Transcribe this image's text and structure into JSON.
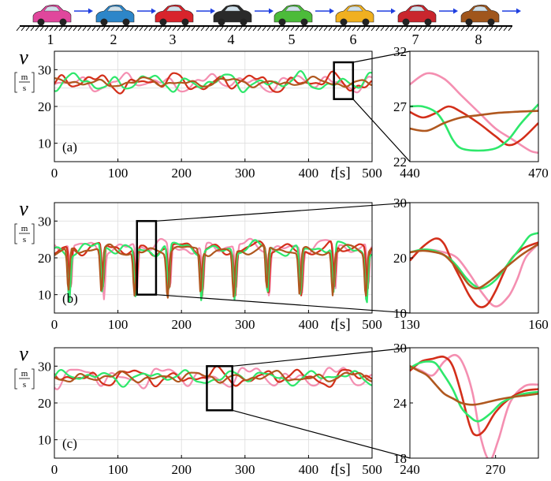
{
  "colors": {
    "pink": "#f48fb1",
    "red": "#d32f1a",
    "green": "#2ee86b",
    "brown": "#b0581f",
    "grid": "#dddddd",
    "road": "#000000"
  },
  "cars": {
    "labels": [
      "1",
      "2",
      "3",
      "4",
      "5",
      "6",
      "7",
      "8"
    ],
    "colors": [
      "#e0479c",
      "#2d86c9",
      "#d8242c",
      "#2a2a2a",
      "#4cbb3a",
      "#f0b020",
      "#c9262e",
      "#a0561c"
    ],
    "arrow_color": "#1f3fe0"
  },
  "chart_data": [
    {
      "type": "line",
      "panel": "(a)",
      "ylabel": "v",
      "yunit_num": "m",
      "yunit_den": "s",
      "xlabel_var": "t",
      "xlabel_unit": "[s]",
      "xlim": [
        0,
        500
      ],
      "ylim": [
        5,
        35
      ],
      "xticks": [
        "0",
        "100",
        "200",
        "300",
        "400",
        "500"
      ],
      "yticks": [
        "10",
        "20",
        "30"
      ],
      "zoom_box": {
        "x": [
          440,
          470
        ],
        "y": [
          22,
          32
        ]
      },
      "inset": {
        "xlim": [
          440,
          470
        ],
        "ylim": [
          22,
          32
        ],
        "xticks": [
          "440",
          "470"
        ],
        "yticks": [
          "22",
          "27",
          "32"
        ],
        "series": [
          {
            "color_key": "pink",
            "x": [
              440,
              444,
              448,
              452,
              456,
              460,
              464,
              468,
              470
            ],
            "y": [
              29,
              30,
              29.5,
              28,
              26.5,
              25,
              24,
              23,
              22.8
            ]
          },
          {
            "color_key": "red",
            "x": [
              440,
              443,
              446,
              449,
              452,
              456,
              460,
              463,
              466,
              470
            ],
            "y": [
              26.5,
              26,
              26.4,
              27,
              26.5,
              25.5,
              24.3,
              23.5,
              24,
              25.5
            ]
          },
          {
            "color_key": "green",
            "x": [
              440,
              443,
              446,
              448,
              450,
              452,
              456,
              460,
              463,
              466,
              470
            ],
            "y": [
              27,
              27,
              26.5,
              25.5,
              24,
              23.2,
              23,
              23.2,
              24,
              25.5,
              27.2
            ]
          },
          {
            "color_key": "brown",
            "x": [
              440,
              444,
              448,
              452,
              456,
              460,
              464,
              470
            ],
            "y": [
              25,
              24.8,
              25.5,
              26,
              26.2,
              26.4,
              26.5,
              26.6
            ]
          }
        ]
      },
      "series": [
        {
          "color_key": "pink",
          "mean": 26.5,
          "amp": 2.4,
          "seed": 11
        },
        {
          "color_key": "red",
          "mean": 26.5,
          "amp": 2.6,
          "seed": 23
        },
        {
          "color_key": "green",
          "mean": 26.5,
          "amp": 2.5,
          "seed": 37
        },
        {
          "color_key": "brown",
          "mean": 26.5,
          "amp": 1.3,
          "seed": 51
        }
      ]
    },
    {
      "type": "line",
      "panel": "(b)",
      "ylabel": "v",
      "yunit_num": "m",
      "yunit_den": "s",
      "xlabel_var": "t",
      "xlabel_unit": "[s]",
      "xlim": [
        0,
        500
      ],
      "ylim": [
        5,
        35
      ],
      "xticks": [
        "0",
        "100",
        "200",
        "300",
        "400",
        "500"
      ],
      "yticks": [
        "10",
        "20",
        "30"
      ],
      "zoom_box": {
        "x": [
          130,
          160
        ],
        "y": [
          10,
          30
        ]
      },
      "inset": {
        "xlim": [
          130,
          160
        ],
        "ylim": [
          10,
          30
        ],
        "xticks": [
          "130",
          "160"
        ],
        "yticks": [
          "10",
          "20",
          "30"
        ],
        "series": [
          {
            "color_key": "pink",
            "x": [
              130,
              134,
              138,
              141,
              144,
              147,
              150,
              153,
              155,
              157,
              160
            ],
            "y": [
              21,
              21.5,
              21,
              20,
              17,
              13.5,
              11.2,
              13,
              16,
              20,
              22.5
            ]
          },
          {
            "color_key": "red",
            "x": [
              130,
              133,
              136,
              138,
              140,
              142,
              144,
              146,
              148,
              150,
              153,
              156,
              160
            ],
            "y": [
              19.5,
              22,
              23.5,
              22.5,
              19,
              16,
              13,
              11.2,
              11.5,
              14,
              19,
              21.5,
              22.8
            ]
          },
          {
            "color_key": "green",
            "x": [
              130,
              133,
              136,
              139,
              141,
              143,
              145,
              147,
              150,
              153,
              156,
              158,
              160
            ],
            "y": [
              21,
              21.5,
              21.2,
              20,
              18.5,
              16.5,
              15,
              14.5,
              16,
              19,
              22,
              24,
              24.5
            ]
          },
          {
            "color_key": "brown",
            "x": [
              130,
              133,
              136,
              138,
              140,
              142,
              144,
              146,
              149,
              152,
              156,
              160
            ],
            "y": [
              21,
              21.3,
              21,
              20.5,
              19,
              17,
              15,
              14.5,
              16,
              18,
              20.5,
              22.5
            ]
          }
        ]
      },
      "series": [
        {
          "color_key": "pink",
          "mean": 23,
          "amp": 2.0,
          "seed": 7,
          "dips": true
        },
        {
          "color_key": "red",
          "mean": 22.5,
          "amp": 2.0,
          "seed": 19,
          "dips": true
        },
        {
          "color_key": "green",
          "mean": 22.5,
          "amp": 2.0,
          "seed": 29,
          "dips": true
        },
        {
          "color_key": "brown",
          "mean": 22,
          "amp": 1.5,
          "seed": 43,
          "dips": true
        }
      ]
    },
    {
      "type": "line",
      "panel": "(c)",
      "ylabel": "v",
      "yunit_num": "m",
      "yunit_den": "s",
      "xlabel_var": "t",
      "xlabel_unit": "[s]",
      "xlim": [
        0,
        500
      ],
      "ylim": [
        5,
        35
      ],
      "xticks": [
        "0",
        "100",
        "200",
        "300",
        "400",
        "500"
      ],
      "yticks": [
        "10",
        "20",
        "30"
      ],
      "zoom_box": {
        "x": [
          240,
          280
        ],
        "y": [
          18,
          30
        ]
      },
      "inset": {
        "xlim": [
          240,
          285
        ],
        "ylim": [
          18,
          30
        ],
        "xticks": [
          "240",
          "270"
        ],
        "yticks": [
          "18",
          "24",
          "30"
        ],
        "series": [
          {
            "color_key": "pink",
            "x": [
              240,
              244,
              248,
              252,
              256,
              259,
              262,
              265,
              268,
              271,
              275,
              280,
              285
            ],
            "y": [
              28,
              27.5,
              27,
              28.5,
              29.2,
              28,
              25,
              20,
              17.8,
              20,
              24,
              25.8,
              26
            ]
          },
          {
            "color_key": "red",
            "x": [
              240,
              244,
              248,
              252,
              255,
              258,
              261,
              263,
              266,
              270,
              275,
              280,
              285
            ],
            "y": [
              27.5,
              28.5,
              28.8,
              29,
              28,
              25,
              21.5,
              20.5,
              21,
              23,
              24.5,
              25.3,
              25.5
            ]
          },
          {
            "color_key": "green",
            "x": [
              240,
              243,
              246,
              249,
              252,
              255,
              258,
              261,
              264,
              268,
              272,
              276,
              280,
              285
            ],
            "y": [
              27.8,
              28.3,
              28.5,
              28.3,
              27,
              25.5,
              23.5,
              22.5,
              22,
              22.8,
              24,
              24.6,
              25,
              25.2
            ]
          },
          {
            "color_key": "brown",
            "x": [
              240,
              243,
              246,
              249,
              252,
              255,
              258,
              262,
              266,
              270,
              275,
              280,
              285
            ],
            "y": [
              28,
              27.5,
              27,
              26,
              25,
              24.5,
              24,
              23.8,
              24,
              24.3,
              24.6,
              24.8,
              25
            ]
          }
        ]
      },
      "series": [
        {
          "color_key": "pink",
          "mean": 27,
          "amp": 3.0,
          "seed": 13
        },
        {
          "color_key": "red",
          "mean": 27,
          "amp": 2.5,
          "seed": 31
        },
        {
          "color_key": "green",
          "mean": 27,
          "amp": 2.0,
          "seed": 47
        },
        {
          "color_key": "brown",
          "mean": 27,
          "amp": 1.5,
          "seed": 59
        }
      ]
    }
  ]
}
